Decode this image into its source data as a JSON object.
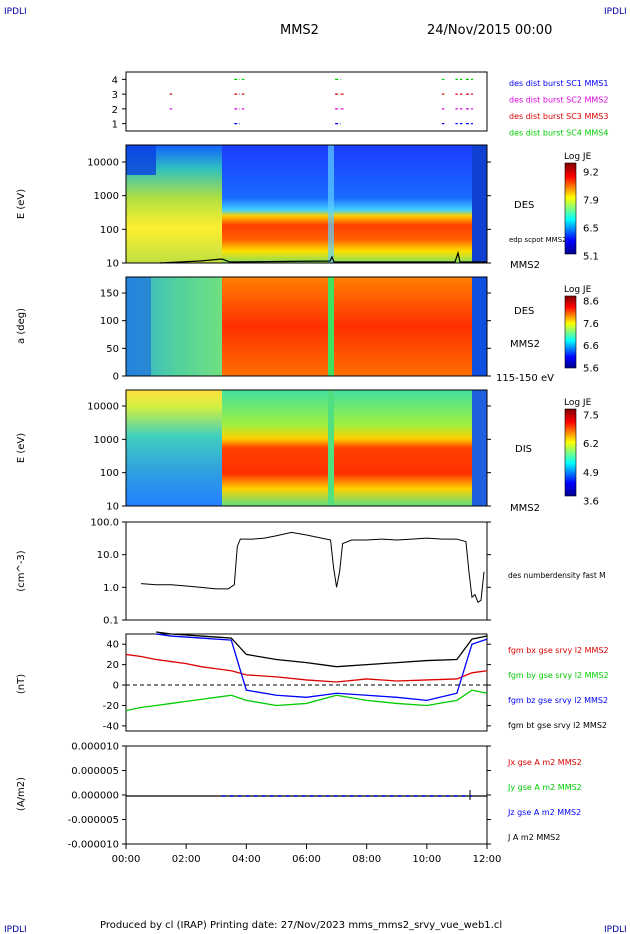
{
  "header": {
    "corner_left": "IPDLI",
    "corner_right": "IPDLI",
    "spacecraft": "MMS2",
    "date": "24/Nov/2015 00:00",
    "footer": "Produced by cl (IRAP)   Printing date: 27/Nov/2023   mms_mms2_srvy_vue_web1.cl",
    "footer_corner_left": "IPDLI",
    "footer_corner_right": "IPDLI"
  },
  "colors": {
    "mms1": "#0000ff",
    "mms2": "#dd00dd",
    "mms3": "#dd0000",
    "mms4": "#00cc00",
    "bx": "#dd0000",
    "by": "#00cc00",
    "bz": "#0000ff",
    "bt": "#000000"
  },
  "chart_data": [
    {
      "type": "scatter",
      "panel": "burst-availability",
      "yticks": [
        "4",
        "3",
        "2",
        "1"
      ],
      "ylim": [
        0.5,
        4.5
      ],
      "series": [
        {
          "name": "des dist burst SC1 MMS1",
          "level": 1,
          "color": "mms1",
          "segments": [
            [
              3.6,
              3.75
            ],
            [
              6.95,
              7.1
            ],
            [
              10.5,
              10.55
            ],
            [
              10.95,
              11.0
            ],
            [
              11.1,
              11.15
            ],
            [
              11.3,
              11.5
            ]
          ]
        },
        {
          "name": "des dist burst SC2 MMS2",
          "level": 2,
          "color": "mms2",
          "segments": [
            [
              1.45,
              1.5
            ],
            [
              3.6,
              3.75
            ],
            [
              3.85,
              3.9
            ],
            [
              6.95,
              7.1
            ],
            [
              7.15,
              7.2
            ],
            [
              10.5,
              10.55
            ],
            [
              10.95,
              11.0
            ],
            [
              11.1,
              11.15
            ],
            [
              11.3,
              11.5
            ]
          ]
        },
        {
          "name": "des dist burst SC3 MMS3",
          "level": 3,
          "color": "mms3",
          "segments": [
            [
              1.45,
              1.5
            ],
            [
              3.6,
              3.75
            ],
            [
              3.85,
              3.9
            ],
            [
              6.95,
              7.1
            ],
            [
              7.15,
              7.2
            ],
            [
              10.5,
              10.55
            ],
            [
              10.95,
              11.0
            ],
            [
              11.1,
              11.15
            ],
            [
              11.3,
              11.5
            ]
          ]
        },
        {
          "name": "des dist burst SC4 MMS4",
          "level": 4,
          "color": "mms4",
          "segments": [
            [
              3.6,
              3.75
            ],
            [
              3.85,
              3.9
            ],
            [
              6.95,
              7.1
            ],
            [
              10.5,
              10.55
            ],
            [
              10.95,
              11.0
            ],
            [
              11.1,
              11.15
            ],
            [
              11.3,
              11.5
            ]
          ]
        }
      ]
    },
    {
      "type": "heatmap",
      "panel": "des-energy",
      "ylabel": "E (eV)",
      "yscale": "log",
      "yticks": [
        "10000",
        "1000",
        "100",
        "10"
      ],
      "ylim": [
        10,
        30000
      ],
      "label": "DES",
      "overlay_label": "edp scpot MMS2",
      "bottom_label": "MMS2",
      "colorbar": {
        "title": "Log JE",
        "ticks": [
          "9.2",
          "7.9",
          "6.5",
          "5.1"
        ],
        "range": [
          5.1,
          9.2
        ]
      }
    },
    {
      "type": "heatmap",
      "panel": "des-pitch-angle",
      "ylabel": "a (deg)",
      "yticks": [
        "150",
        "100",
        "50",
        "0"
      ],
      "ylim": [
        0,
        180
      ],
      "label": "DES",
      "label2": "MMS2",
      "bottom_label": "115-150 eV",
      "colorbar": {
        "title": "Log JE",
        "ticks": [
          "8.6",
          "7.6",
          "6.6",
          "5.6"
        ],
        "range": [
          5.6,
          8.6
        ]
      }
    },
    {
      "type": "heatmap",
      "panel": "dis-energy",
      "ylabel": "E (eV)",
      "yscale": "log",
      "yticks": [
        "10000",
        "1000",
        "100",
        "10"
      ],
      "ylim": [
        10,
        30000
      ],
      "label": "DIS",
      "bottom_label": "MMS2",
      "colorbar": {
        "title": "Log JE",
        "ticks": [
          "7.5",
          "6.2",
          "4.9",
          "3.6"
        ],
        "range": [
          3.6,
          7.5
        ]
      }
    },
    {
      "type": "line",
      "panel": "density",
      "ylabel": "(cm^-3)",
      "yscale": "log",
      "yticks": [
        "100.0",
        "10.0",
        "1.0",
        "0.1"
      ],
      "ylim": [
        0.1,
        100
      ],
      "series": [
        {
          "name": "des numberdensity fast M",
          "color": "bt",
          "x": [
            0.5,
            1.0,
            1.5,
            2.0,
            2.5,
            3.0,
            3.4,
            3.6,
            3.7,
            3.8,
            4.2,
            4.6,
            5.0,
            5.5,
            6.0,
            6.5,
            6.8,
            6.9,
            7.0,
            7.1,
            7.2,
            7.5,
            8.0,
            8.5,
            9.0,
            9.5,
            10.0,
            10.5,
            11.0,
            11.3,
            11.4,
            11.5,
            11.6,
            11.7,
            11.8,
            11.9
          ],
          "y": [
            1.3,
            1.2,
            1.2,
            1.1,
            1.0,
            0.9,
            0.9,
            1.2,
            18,
            30,
            30,
            32,
            38,
            48,
            40,
            32,
            28,
            4,
            1.0,
            3,
            22,
            28,
            28,
            30,
            28,
            30,
            32,
            30,
            30,
            25,
            3,
            0.5,
            0.6,
            0.35,
            0.4,
            3
          ]
        }
      ]
    },
    {
      "type": "line",
      "panel": "magnetic-field",
      "ylabel": "(nT)",
      "yticks": [
        "40",
        "20",
        "0",
        "-20",
        "-40"
      ],
      "ylim": [
        -45,
        50
      ],
      "series": [
        {
          "name": "fgm bx gse srvy l2 MMS2",
          "color": "bx",
          "x": [
            0,
            0.5,
            1.0,
            1.5,
            2.0,
            2.5,
            3.0,
            3.5,
            4.0,
            5.0,
            6.0,
            7.0,
            8.0,
            9.0,
            10.0,
            11.0,
            11.5,
            12.0
          ],
          "y": [
            30,
            28,
            25,
            23,
            21,
            18,
            16,
            14,
            10,
            8,
            5,
            3,
            6,
            4,
            5,
            6,
            12,
            14
          ]
        },
        {
          "name": "fgm by gse srvy l2 MMS2",
          "color": "by",
          "x": [
            0,
            0.5,
            1.0,
            1.5,
            2.0,
            2.5,
            3.0,
            3.5,
            4.0,
            5.0,
            6.0,
            7.0,
            8.0,
            9.0,
            10.0,
            11.0,
            11.5,
            12.0
          ],
          "y": [
            -25,
            -22,
            -20,
            -18,
            -16,
            -14,
            -12,
            -10,
            -15,
            -20,
            -18,
            -10,
            -15,
            -18,
            -20,
            -15,
            -5,
            -8
          ]
        },
        {
          "name": "fgm bz gse srvy l2 MMS2",
          "color": "bz",
          "x": [
            1.0,
            1.5,
            2.0,
            2.5,
            3.0,
            3.5,
            4.0,
            5.0,
            6.0,
            7.0,
            8.0,
            9.0,
            10.0,
            11.0,
            11.5,
            12.0
          ],
          "y": [
            50,
            48,
            47,
            46,
            45,
            44,
            -5,
            -10,
            -12,
            -8,
            -10,
            -12,
            -15,
            -8,
            40,
            45
          ]
        },
        {
          "name": "fgm bt gse srvy l2 MMS2",
          "color": "bt",
          "x": [
            1.0,
            1.5,
            2.0,
            2.5,
            3.0,
            3.5,
            4.0,
            5.0,
            6.0,
            7.0,
            8.0,
            9.0,
            10.0,
            11.0,
            11.5,
            12.0
          ],
          "y": [
            52,
            50,
            49,
            48,
            47,
            46,
            30,
            25,
            22,
            18,
            20,
            22,
            24,
            25,
            45,
            48
          ]
        }
      ]
    },
    {
      "type": "line",
      "panel": "current-density",
      "ylabel": "(A/m2)",
      "yticks": [
        "0.000010",
        "0.000005",
        "0.000000",
        "-0.000005",
        "-0.000010"
      ],
      "ylim": [
        -1e-05,
        1e-05
      ],
      "series": [
        {
          "name": "Jx gse A m2 MMS2",
          "color": "bx",
          "x": [
            0,
            12
          ],
          "y": [
            0,
            0
          ]
        },
        {
          "name": "Jy gse A m2 MMS2",
          "color": "by",
          "x": [
            0,
            12
          ],
          "y": [
            0,
            0
          ]
        },
        {
          "name": "Jz gse A m2 MMS2",
          "color": "bz",
          "x": [
            0,
            12
          ],
          "y": [
            0,
            0
          ]
        },
        {
          "name": "J A m2 MMS2",
          "color": "bt",
          "x": [
            0,
            12
          ],
          "y": [
            0,
            0
          ]
        }
      ]
    }
  ],
  "xaxis": {
    "ticks": [
      "00:00",
      "02:00",
      "04:00",
      "06:00",
      "08:00",
      "10:00",
      "12:00"
    ],
    "range": [
      0,
      12
    ]
  }
}
